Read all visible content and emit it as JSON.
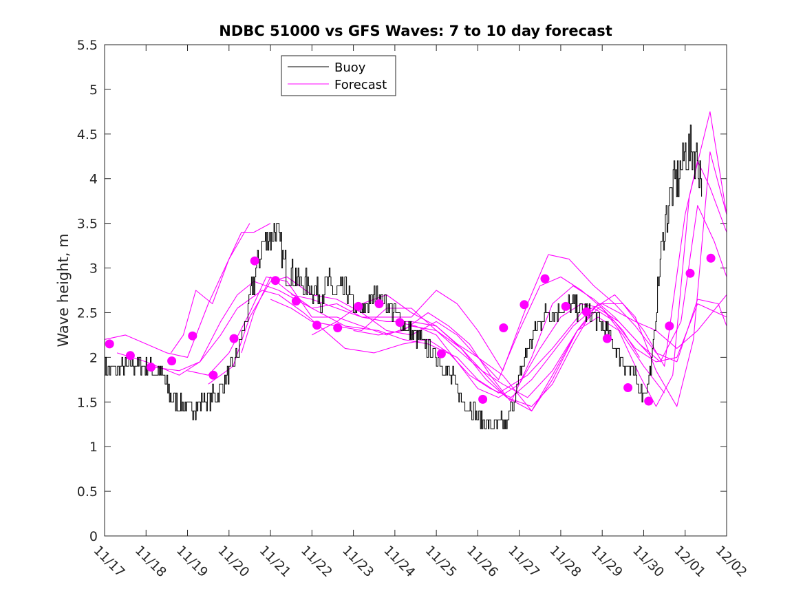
{
  "chart_data": {
    "type": "line",
    "title": "NDBC 51000 vs GFS Waves: 7 to 10 day forecast",
    "xlabel": "",
    "ylabel": "Wave height, m",
    "x_range": [
      0,
      15
    ],
    "ylim": [
      0,
      5.5
    ],
    "x_ticks": [
      {
        "x": 0,
        "label": "11/17"
      },
      {
        "x": 1,
        "label": "11/18"
      },
      {
        "x": 2,
        "label": "11/19"
      },
      {
        "x": 3,
        "label": "11/20"
      },
      {
        "x": 4,
        "label": "11/21"
      },
      {
        "x": 5,
        "label": "11/22"
      },
      {
        "x": 6,
        "label": "11/23"
      },
      {
        "x": 7,
        "label": "11/24"
      },
      {
        "x": 8,
        "label": "11/25"
      },
      {
        "x": 9,
        "label": "11/26"
      },
      {
        "x": 10,
        "label": "11/27"
      },
      {
        "x": 11,
        "label": "11/28"
      },
      {
        "x": 12,
        "label": "11/29"
      },
      {
        "x": 13,
        "label": "11/30"
      },
      {
        "x": 14,
        "label": "12/01"
      },
      {
        "x": 15,
        "label": "12/02"
      }
    ],
    "y_ticks": [
      {
        "y": 0,
        "label": "0"
      },
      {
        "y": 0.5,
        "label": "0.5"
      },
      {
        "y": 1,
        "label": "1"
      },
      {
        "y": 1.5,
        "label": "1.5"
      },
      {
        "y": 2,
        "label": "2"
      },
      {
        "y": 2.5,
        "label": "2.5"
      },
      {
        "y": 3,
        "label": "3"
      },
      {
        "y": 3.5,
        "label": "3.5"
      },
      {
        "y": 4,
        "label": "4"
      },
      {
        "y": 4.5,
        "label": "4.5"
      },
      {
        "y": 5,
        "label": "5"
      },
      {
        "y": 5.5,
        "label": "5.5"
      }
    ],
    "legend": {
      "position": "top-left-inside",
      "entries": [
        {
          "label": "Buoy",
          "color": "#000000"
        },
        {
          "label": "Forecast",
          "color": "#ff00ff"
        }
      ]
    },
    "colors": {
      "buoy": "#000000",
      "forecast": "#ff00ff",
      "axes": "#262626",
      "background": "#ffffff"
    },
    "buoy_anchors": [
      [
        0.0,
        1.9
      ],
      [
        0.3,
        1.85
      ],
      [
        0.7,
        1.9
      ],
      [
        1.0,
        1.9
      ],
      [
        1.2,
        1.85
      ],
      [
        1.4,
        1.8
      ],
      [
        1.6,
        1.55
      ],
      [
        1.8,
        1.45
      ],
      [
        2.0,
        1.45
      ],
      [
        2.2,
        1.45
      ],
      [
        2.4,
        1.55
      ],
      [
        2.6,
        1.55
      ],
      [
        2.8,
        1.65
      ],
      [
        3.0,
        1.8
      ],
      [
        3.2,
        2.0
      ],
      [
        3.4,
        2.4
      ],
      [
        3.6,
        2.85
      ],
      [
        3.8,
        3.25
      ],
      [
        4.0,
        3.35
      ],
      [
        4.1,
        3.45
      ],
      [
        4.2,
        3.3
      ],
      [
        4.4,
        2.95
      ],
      [
        4.6,
        2.9
      ],
      [
        4.8,
        2.8
      ],
      [
        5.0,
        2.8
      ],
      [
        5.2,
        2.7
      ],
      [
        5.4,
        2.8
      ],
      [
        5.6,
        2.7
      ],
      [
        5.8,
        2.75
      ],
      [
        6.0,
        2.6
      ],
      [
        6.2,
        2.5
      ],
      [
        6.4,
        2.65
      ],
      [
        6.6,
        2.7
      ],
      [
        6.8,
        2.6
      ],
      [
        7.0,
        2.5
      ],
      [
        7.2,
        2.35
      ],
      [
        7.4,
        2.25
      ],
      [
        7.6,
        2.2
      ],
      [
        7.8,
        2.1
      ],
      [
        8.0,
        2.0
      ],
      [
        8.2,
        1.85
      ],
      [
        8.4,
        1.75
      ],
      [
        8.6,
        1.55
      ],
      [
        8.8,
        1.45
      ],
      [
        9.0,
        1.35
      ],
      [
        9.2,
        1.25
      ],
      [
        9.4,
        1.25
      ],
      [
        9.6,
        1.25
      ],
      [
        9.7,
        1.25
      ],
      [
        9.85,
        1.5
      ],
      [
        10.0,
        1.75
      ],
      [
        10.2,
        2.1
      ],
      [
        10.4,
        2.3
      ],
      [
        10.6,
        2.5
      ],
      [
        10.8,
        2.5
      ],
      [
        11.0,
        2.55
      ],
      [
        11.2,
        2.6
      ],
      [
        11.4,
        2.55
      ],
      [
        11.6,
        2.5
      ],
      [
        11.8,
        2.45
      ],
      [
        12.0,
        2.35
      ],
      [
        12.2,
        2.2
      ],
      [
        12.4,
        2.05
      ],
      [
        12.6,
        1.9
      ],
      [
        12.8,
        1.75
      ],
      [
        13.0,
        1.6
      ],
      [
        13.1,
        1.7
      ],
      [
        13.2,
        2.0
      ],
      [
        13.3,
        2.5
      ],
      [
        13.4,
        3.1
      ],
      [
        13.5,
        3.5
      ],
      [
        13.7,
        3.9
      ],
      [
        13.9,
        4.1
      ],
      [
        14.0,
        4.3
      ],
      [
        14.2,
        4.3
      ],
      [
        14.3,
        4.2
      ],
      [
        14.4,
        4.0
      ]
    ],
    "forecast_lines": [
      [
        [
          0.0,
          2.2
        ],
        [
          0.5,
          2.25
        ],
        [
          1.0,
          2.15
        ],
        [
          1.5,
          2.05
        ],
        [
          2.0,
          2.0
        ],
        [
          2.5,
          2.6
        ],
        [
          3.0,
          3.1
        ],
        [
          3.5,
          3.5
        ]
      ],
      [
        [
          1.6,
          2.05
        ],
        [
          1.9,
          2.25
        ],
        [
          2.2,
          2.75
        ],
        [
          2.6,
          2.6
        ],
        [
          3.0,
          3.1
        ],
        [
          3.3,
          3.4
        ],
        [
          3.6,
          3.4
        ],
        [
          4.0,
          3.5
        ]
      ],
      [
        [
          0.3,
          2.05
        ],
        [
          1.0,
          1.95
        ],
        [
          1.8,
          1.8
        ],
        [
          2.3,
          1.95
        ],
        [
          2.8,
          2.4
        ],
        [
          3.2,
          2.7
        ],
        [
          3.6,
          2.85
        ],
        [
          4.2,
          2.75
        ],
        [
          5.0,
          2.55
        ],
        [
          5.8,
          2.35
        ],
        [
          6.6,
          2.3
        ],
        [
          7.2,
          2.2
        ],
        [
          7.8,
          2.15
        ],
        [
          8.5,
          2.0
        ],
        [
          9.0,
          1.75
        ],
        [
          9.5,
          1.6
        ],
        [
          10.2,
          1.8
        ],
        [
          10.8,
          2.1
        ],
        [
          11.5,
          2.5
        ],
        [
          12.0,
          2.6
        ],
        [
          12.8,
          2.4
        ],
        [
          13.3,
          2.3
        ],
        [
          13.8,
          2.1
        ],
        [
          14.3,
          2.3
        ],
        [
          15.0,
          2.7
        ]
      ],
      [
        [
          1.0,
          1.9
        ],
        [
          1.8,
          1.85
        ],
        [
          2.3,
          1.95
        ],
        [
          2.8,
          2.25
        ],
        [
          3.2,
          2.55
        ],
        [
          3.8,
          2.75
        ],
        [
          4.2,
          2.7
        ],
        [
          4.8,
          2.5
        ],
        [
          5.3,
          2.3
        ],
        [
          5.8,
          2.1
        ],
        [
          6.5,
          2.05
        ],
        [
          7.2,
          2.15
        ],
        [
          7.8,
          2.2
        ],
        [
          8.3,
          2.05
        ],
        [
          8.8,
          1.8
        ],
        [
          9.3,
          1.65
        ],
        [
          9.8,
          1.55
        ],
        [
          10.3,
          1.75
        ],
        [
          10.8,
          2.05
        ],
        [
          11.3,
          2.35
        ],
        [
          11.8,
          2.55
        ],
        [
          12.3,
          2.4
        ],
        [
          12.8,
          2.1
        ],
        [
          13.3,
          1.95
        ],
        [
          13.8,
          2.0
        ],
        [
          14.3,
          2.6
        ],
        [
          15.0,
          2.45
        ]
      ],
      [
        [
          2.0,
          1.85
        ],
        [
          2.5,
          1.8
        ],
        [
          3.0,
          2.05
        ],
        [
          3.5,
          2.5
        ],
        [
          3.9,
          2.9
        ],
        [
          4.4,
          2.85
        ],
        [
          5.0,
          2.45
        ],
        [
          5.6,
          2.45
        ],
        [
          6.2,
          2.35
        ],
        [
          6.8,
          2.25
        ],
        [
          7.4,
          2.35
        ],
        [
          8.0,
          2.3
        ],
        [
          8.6,
          2.05
        ],
        [
          9.1,
          1.85
        ],
        [
          9.6,
          1.7
        ],
        [
          10.2,
          1.55
        ],
        [
          10.8,
          1.85
        ],
        [
          11.4,
          2.3
        ],
        [
          11.9,
          2.55
        ],
        [
          12.4,
          2.4
        ],
        [
          12.9,
          2.15
        ],
        [
          13.4,
          1.95
        ],
        [
          13.9,
          2.4
        ],
        [
          14.3,
          3.7
        ],
        [
          14.7,
          3.3
        ],
        [
          15.0,
          2.9
        ]
      ],
      [
        [
          2.5,
          1.7
        ],
        [
          3.1,
          1.9
        ],
        [
          3.5,
          2.45
        ],
        [
          4.0,
          2.85
        ],
        [
          4.4,
          2.9
        ],
        [
          5.0,
          2.7
        ],
        [
          5.6,
          2.65
        ],
        [
          6.2,
          2.5
        ],
        [
          6.8,
          2.3
        ],
        [
          7.4,
          2.25
        ],
        [
          8.0,
          2.4
        ],
        [
          8.5,
          2.25
        ],
        [
          9.0,
          2.0
        ],
        [
          9.6,
          1.8
        ],
        [
          10.3,
          1.4
        ],
        [
          10.8,
          1.75
        ],
        [
          11.4,
          2.3
        ],
        [
          11.9,
          2.6
        ],
        [
          12.5,
          2.6
        ],
        [
          13.0,
          2.3
        ],
        [
          13.5,
          1.9
        ],
        [
          14.0,
          3.6
        ],
        [
          14.3,
          4.2
        ],
        [
          14.6,
          3.9
        ],
        [
          15.0,
          3.4
        ]
      ],
      [
        [
          3.3,
          2.05
        ],
        [
          3.6,
          2.5
        ],
        [
          4.0,
          2.9
        ],
        [
          4.4,
          2.75
        ],
        [
          5.0,
          2.55
        ],
        [
          5.6,
          2.6
        ],
        [
          6.2,
          2.45
        ],
        [
          6.8,
          2.4
        ],
        [
          7.4,
          2.4
        ],
        [
          8.0,
          2.35
        ],
        [
          8.6,
          2.1
        ],
        [
          9.2,
          1.75
        ],
        [
          9.7,
          1.55
        ],
        [
          10.3,
          1.45
        ],
        [
          10.8,
          1.7
        ],
        [
          11.3,
          2.15
        ],
        [
          11.8,
          2.55
        ],
        [
          12.3,
          2.7
        ],
        [
          12.8,
          2.45
        ],
        [
          13.3,
          1.85
        ],
        [
          13.8,
          1.45
        ],
        [
          14.2,
          2.2
        ],
        [
          14.6,
          4.3
        ],
        [
          15.0,
          3.6
        ]
      ],
      [
        [
          4.0,
          2.65
        ],
        [
          4.5,
          2.55
        ],
        [
          5.0,
          2.4
        ],
        [
          5.6,
          2.35
        ],
        [
          6.2,
          2.3
        ],
        [
          6.8,
          2.55
        ],
        [
          7.4,
          2.55
        ],
        [
          8.0,
          2.3
        ],
        [
          8.6,
          2.1
        ],
        [
          9.2,
          1.8
        ],
        [
          9.7,
          1.55
        ],
        [
          10.3,
          1.4
        ],
        [
          10.8,
          1.8
        ],
        [
          11.4,
          2.3
        ],
        [
          11.9,
          2.45
        ],
        [
          12.4,
          2.3
        ],
        [
          12.9,
          1.8
        ],
        [
          13.3,
          1.45
        ],
        [
          13.7,
          1.8
        ],
        [
          14.1,
          3.8
        ],
        [
          14.6,
          4.75
        ],
        [
          15.0,
          3.6
        ]
      ],
      [
        [
          4.5,
          2.7
        ],
        [
          5.0,
          2.65
        ],
        [
          5.6,
          2.55
        ],
        [
          6.2,
          2.45
        ],
        [
          6.8,
          2.45
        ],
        [
          7.4,
          2.45
        ],
        [
          8.0,
          2.75
        ],
        [
          8.5,
          2.6
        ],
        [
          9.0,
          2.3
        ],
        [
          9.6,
          1.85
        ],
        [
          10.2,
          2.6
        ],
        [
          10.7,
          3.15
        ],
        [
          11.2,
          3.1
        ],
        [
          11.8,
          2.8
        ],
        [
          12.3,
          2.6
        ],
        [
          12.8,
          2.35
        ],
        [
          13.3,
          2.05
        ],
        [
          13.8,
          1.95
        ],
        [
          14.3,
          2.65
        ],
        [
          14.8,
          2.6
        ],
        [
          15.0,
          2.35
        ]
      ],
      [
        [
          5.0,
          2.25
        ],
        [
          5.6,
          2.4
        ],
        [
          6.2,
          2.6
        ],
        [
          6.8,
          2.7
        ],
        [
          7.4,
          2.5
        ],
        [
          8.0,
          2.35
        ],
        [
          8.5,
          2.15
        ],
        [
          9.0,
          2.0
        ],
        [
          9.5,
          1.75
        ],
        [
          10.0,
          2.3
        ],
        [
          10.5,
          2.8
        ],
        [
          11.0,
          2.9
        ],
        [
          11.5,
          2.75
        ],
        [
          12.0,
          2.55
        ],
        [
          12.5,
          2.25
        ],
        [
          13.0,
          1.9
        ],
        [
          13.5,
          1.6
        ]
      ],
      [
        [
          6.0,
          2.3
        ],
        [
          6.6,
          2.25
        ],
        [
          7.2,
          2.3
        ],
        [
          7.8,
          2.5
        ],
        [
          8.3,
          2.35
        ],
        [
          8.8,
          2.15
        ],
        [
          9.3,
          1.8
        ],
        [
          9.8,
          1.5
        ],
        [
          10.3,
          2.0
        ],
        [
          10.8,
          2.6
        ],
        [
          11.3,
          2.8
        ],
        [
          11.8,
          2.65
        ],
        [
          12.3,
          2.45
        ],
        [
          12.8,
          2.2
        ],
        [
          13.2,
          2.0
        ]
      ],
      [
        [
          7.0,
          2.4
        ],
        [
          7.5,
          2.35
        ],
        [
          8.0,
          2.25
        ],
        [
          8.5,
          1.95
        ],
        [
          9.0,
          1.65
        ],
        [
          9.5,
          1.55
        ],
        [
          10.0,
          1.7
        ],
        [
          10.5,
          2.1
        ],
        [
          11.0,
          2.45
        ],
        [
          11.5,
          2.6
        ],
        [
          12.0,
          2.55
        ],
        [
          12.5,
          2.3
        ],
        [
          12.9,
          2.0
        ]
      ]
    ],
    "forecast_markers": [
      [
        0.12,
        2.15
      ],
      [
        0.62,
        2.02
      ],
      [
        1.12,
        1.89
      ],
      [
        1.62,
        1.96
      ],
      [
        2.12,
        2.24
      ],
      [
        2.62,
        1.8
      ],
      [
        3.12,
        2.21
      ],
      [
        3.62,
        3.08
      ],
      [
        4.12,
        2.86
      ],
      [
        4.62,
        2.63
      ],
      [
        5.12,
        2.36
      ],
      [
        5.62,
        2.33
      ],
      [
        6.12,
        2.57
      ],
      [
        6.62,
        2.6
      ],
      [
        7.12,
        2.39
      ],
      [
        8.12,
        2.04
      ],
      [
        9.12,
        1.53
      ],
      [
        9.62,
        2.33
      ],
      [
        10.12,
        2.59
      ],
      [
        10.62,
        2.88
      ],
      [
        11.12,
        2.57
      ],
      [
        11.62,
        2.51
      ],
      [
        12.12,
        2.21
      ],
      [
        12.62,
        1.66
      ],
      [
        13.12,
        1.51
      ],
      [
        13.62,
        2.35
      ],
      [
        14.12,
        2.94
      ],
      [
        14.62,
        3.11
      ]
    ]
  }
}
